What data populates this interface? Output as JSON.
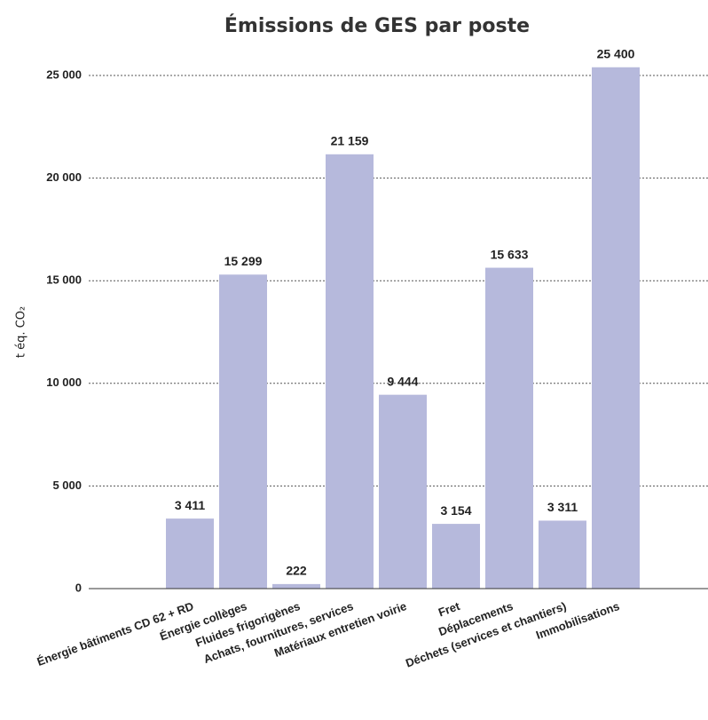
{
  "chart_data": {
    "type": "bar",
    "title": "Émissions de GES par poste",
    "y_label": "t éq. CO₂",
    "categories": [
      "Énergie bâtiments CD 62 + RD",
      "Énergie collèges",
      "Fluides frigorigènes",
      "Achats, fournitures, services",
      "Matériaux entretien voirie",
      "Fret",
      "Déplacements",
      "Déchets (services et chantiers)",
      "Immobilisations"
    ],
    "values": [
      3411,
      15299,
      222,
      21159,
      9444,
      3154,
      15633,
      3311,
      25400
    ],
    "value_labels": [
      "3 411",
      "15 299",
      "222",
      "21 159",
      "9 444",
      "3 154",
      "15 633",
      "3 311",
      "25 400"
    ],
    "color": "#b6b9dc",
    "ylim": [
      0,
      25000
    ],
    "yticks": [
      0,
      {
        "value": 5000,
        "label": "5 000"
      },
      {
        "value": 10000,
        "label": "10 000"
      },
      {
        "value": 15000,
        "label": "15 000"
      },
      {
        "value": 20000,
        "label": "20 000"
      },
      {
        "value": 25000,
        "label": "25 000"
      }
    ],
    "grid": true
  }
}
